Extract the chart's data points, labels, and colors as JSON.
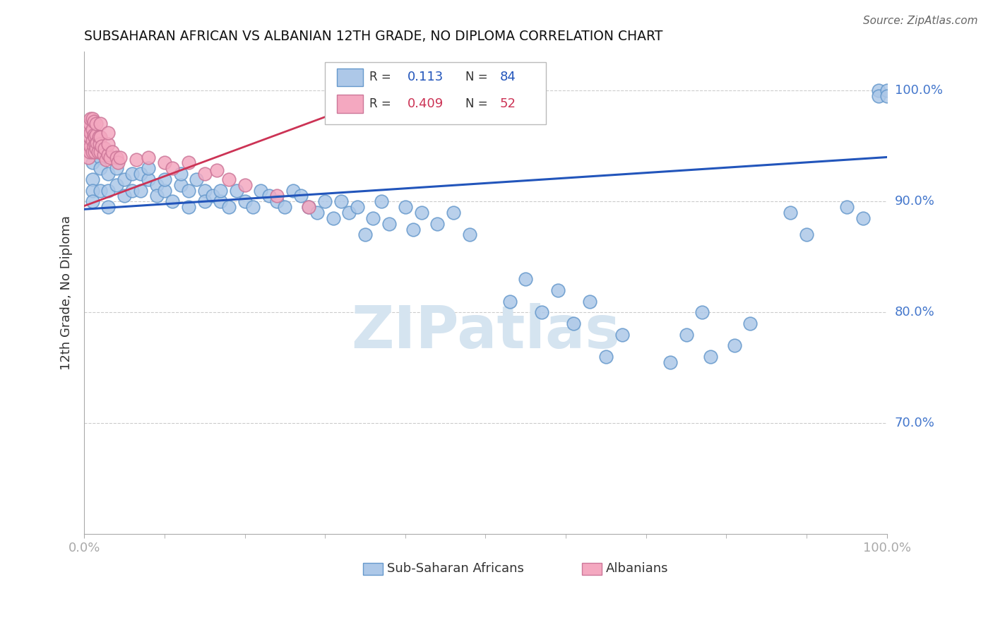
{
  "title": "SUBSAHARAN AFRICAN VS ALBANIAN 12TH GRADE, NO DIPLOMA CORRELATION CHART",
  "source": "Source: ZipAtlas.com",
  "ylabel": "12th Grade, No Diploma",
  "blue_R": "0.113",
  "blue_N": "84",
  "pink_R": "0.409",
  "pink_N": "52",
  "blue_color": "#adc8e8",
  "pink_color": "#f4a8c0",
  "blue_line_color": "#2255bb",
  "pink_line_color": "#cc3355",
  "blue_edge": "#6699cc",
  "pink_edge": "#cc7799",
  "watermark_color": "#d5e4f0",
  "grid_color": "#cccccc",
  "bg_color": "#ffffff",
  "title_color": "#111111",
  "blue_label_color": "#2255bb",
  "pink_label_color": "#cc3355",
  "axis_tick_color": "#4477cc",
  "comment_color": "#888888",
  "xlim": [
    0.0,
    1.0
  ],
  "ylim": [
    0.6,
    1.035
  ],
  "yticks": [
    0.7,
    0.8,
    0.9,
    1.0
  ],
  "ytick_labels": [
    "70.0%",
    "80.0%",
    "90.0%",
    "100.0%"
  ],
  "blue_line_x0": 0.0,
  "blue_line_y0": 0.893,
  "blue_line_x1": 1.0,
  "blue_line_y1": 0.94,
  "pink_line_x0": 0.0,
  "pink_line_y0": 0.896,
  "pink_line_x1": 0.37,
  "pink_line_y1": 0.995,
  "blue_x": [
    0.01,
    0.01,
    0.01,
    0.01,
    0.02,
    0.02,
    0.02,
    0.03,
    0.03,
    0.03,
    0.04,
    0.04,
    0.05,
    0.05,
    0.06,
    0.06,
    0.07,
    0.07,
    0.08,
    0.08,
    0.09,
    0.09,
    0.1,
    0.1,
    0.11,
    0.12,
    0.12,
    0.13,
    0.13,
    0.14,
    0.15,
    0.15,
    0.16,
    0.17,
    0.17,
    0.18,
    0.19,
    0.2,
    0.21,
    0.22,
    0.23,
    0.24,
    0.25,
    0.26,
    0.27,
    0.28,
    0.29,
    0.3,
    0.31,
    0.32,
    0.33,
    0.34,
    0.35,
    0.36,
    0.37,
    0.38,
    0.4,
    0.41,
    0.42,
    0.44,
    0.46,
    0.48,
    0.53,
    0.55,
    0.57,
    0.59,
    0.61,
    0.63,
    0.65,
    0.67,
    0.73,
    0.75,
    0.77,
    0.78,
    0.81,
    0.83,
    0.88,
    0.9,
    0.95,
    0.97,
    0.99,
    0.99,
    1.0,
    1.0
  ],
  "blue_y": [
    0.935,
    0.92,
    0.91,
    0.9,
    0.94,
    0.93,
    0.91,
    0.925,
    0.91,
    0.895,
    0.93,
    0.915,
    0.92,
    0.905,
    0.925,
    0.91,
    0.91,
    0.925,
    0.92,
    0.93,
    0.915,
    0.905,
    0.91,
    0.92,
    0.9,
    0.915,
    0.925,
    0.91,
    0.895,
    0.92,
    0.91,
    0.9,
    0.905,
    0.9,
    0.91,
    0.895,
    0.91,
    0.9,
    0.895,
    0.91,
    0.905,
    0.9,
    0.895,
    0.91,
    0.905,
    0.895,
    0.89,
    0.9,
    0.885,
    0.9,
    0.89,
    0.895,
    0.87,
    0.885,
    0.9,
    0.88,
    0.895,
    0.875,
    0.89,
    0.88,
    0.89,
    0.87,
    0.81,
    0.83,
    0.8,
    0.82,
    0.79,
    0.81,
    0.76,
    0.78,
    0.755,
    0.78,
    0.8,
    0.76,
    0.77,
    0.79,
    0.89,
    0.87,
    0.895,
    0.885,
    1.0,
    0.995,
    1.0,
    0.995
  ],
  "pink_x": [
    0.005,
    0.005,
    0.005,
    0.007,
    0.007,
    0.007,
    0.008,
    0.008,
    0.008,
    0.01,
    0.01,
    0.01,
    0.01,
    0.012,
    0.012,
    0.012,
    0.013,
    0.013,
    0.014,
    0.015,
    0.015,
    0.015,
    0.016,
    0.017,
    0.018,
    0.019,
    0.02,
    0.02,
    0.02,
    0.022,
    0.024,
    0.025,
    0.027,
    0.03,
    0.03,
    0.03,
    0.032,
    0.035,
    0.04,
    0.042,
    0.045,
    0.065,
    0.08,
    0.1,
    0.11,
    0.13,
    0.15,
    0.165,
    0.18,
    0.2,
    0.24,
    0.28
  ],
  "pink_y": [
    0.94,
    0.95,
    0.965,
    0.945,
    0.958,
    0.97,
    0.95,
    0.962,
    0.975,
    0.945,
    0.955,
    0.965,
    0.975,
    0.95,
    0.96,
    0.972,
    0.945,
    0.958,
    0.952,
    0.948,
    0.96,
    0.97,
    0.953,
    0.945,
    0.958,
    0.952,
    0.945,
    0.958,
    0.97,
    0.95,
    0.942,
    0.948,
    0.938,
    0.942,
    0.952,
    0.962,
    0.94,
    0.945,
    0.94,
    0.935,
    0.94,
    0.938,
    0.94,
    0.935,
    0.93,
    0.935,
    0.925,
    0.928,
    0.92,
    0.915,
    0.905,
    0.895
  ]
}
